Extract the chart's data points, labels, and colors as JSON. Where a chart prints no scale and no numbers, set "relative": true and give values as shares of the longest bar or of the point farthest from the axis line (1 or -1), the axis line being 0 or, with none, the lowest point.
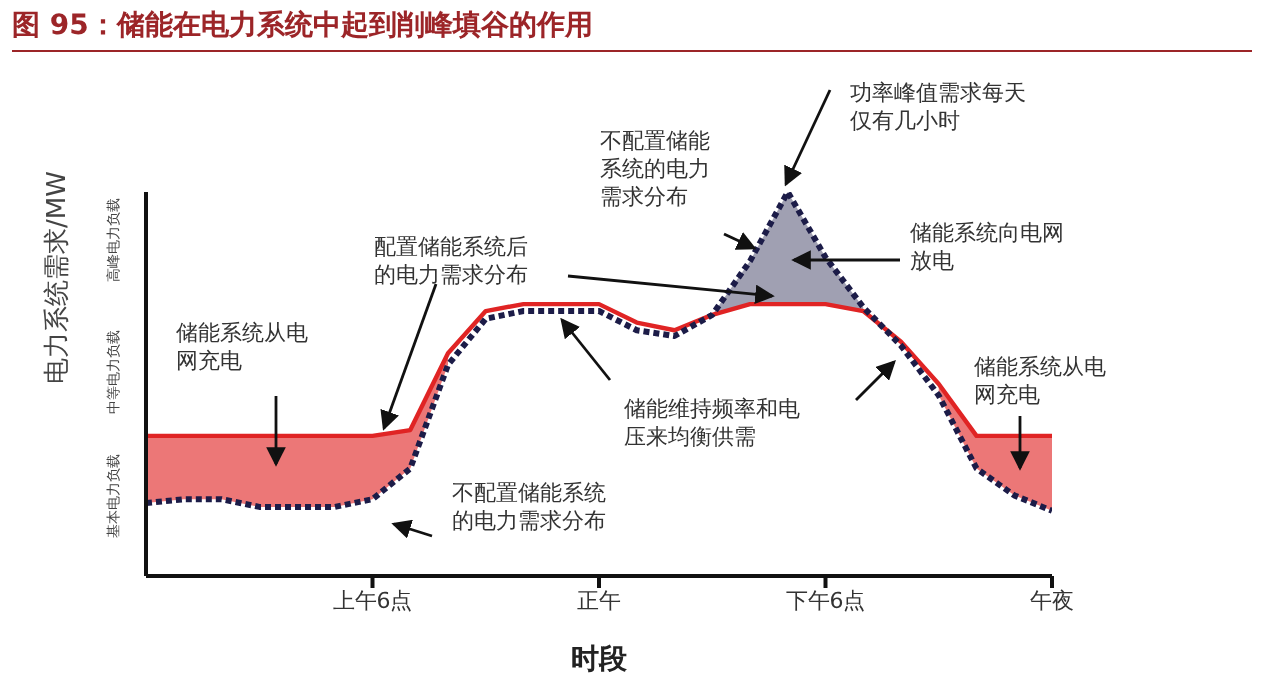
{
  "chart_data": {
    "type": "line",
    "relative": true,
    "title": "图 95：储能在电力系统中起到削峰填谷的作用",
    "xlabel": "时段",
    "ylabel": "电力系统需求/MW",
    "categories": [
      null,
      null,
      null,
      null,
      null,
      null,
      "上午6点",
      null,
      null,
      null,
      null,
      null,
      "正午",
      null,
      null,
      null,
      null,
      null,
      "下午6点",
      null,
      null,
      null,
      null,
      null,
      "午夜"
    ],
    "series": [
      {
        "color": "#e02424",
        "line_style": "solid",
        "values": [
          0.365,
          0.365,
          0.365,
          0.365,
          0.365,
          0.365,
          0.365,
          0.38,
          0.58,
          0.69,
          0.708,
          0.708,
          0.708,
          0.66,
          0.64,
          0.68,
          0.708,
          0.708,
          0.708,
          0.69,
          0.61,
          0.5,
          0.365,
          0.365,
          0.365
        ],
        "lower": [
          0.19,
          0.2,
          0.2,
          0.18,
          0.18,
          0.18,
          0.2,
          0.28,
          0.55,
          null,
          null,
          null,
          null,
          null,
          null,
          null,
          null,
          null,
          null,
          null,
          null,
          0.47,
          0.28,
          0.21,
          0.17
        ],
        "upper": [
          0.365,
          0.365,
          0.365,
          0.365,
          0.365,
          0.365,
          0.365,
          0.38,
          0.58,
          null,
          null,
          null,
          null,
          null,
          null,
          null,
          null,
          null,
          null,
          null,
          null,
          0.5,
          0.365,
          0.365,
          0.365
        ]
      },
      {
        "color": "#1c1c48",
        "line_style": "dotted",
        "values": [
          0.19,
          0.2,
          0.2,
          0.18,
          0.18,
          0.18,
          0.2,
          0.28,
          0.55,
          0.67,
          0.69,
          0.69,
          0.69,
          0.64,
          0.625,
          0.68,
          0.82,
          1.0,
          0.83,
          0.7,
          0.6,
          0.47,
          0.28,
          0.21,
          0.17
        ],
        "lower": [
          null,
          null,
          null,
          null,
          null,
          null,
          null,
          null,
          null,
          null,
          null,
          null,
          null,
          null,
          null,
          0.68,
          0.708,
          0.708,
          0.708,
          0.69,
          null,
          null,
          null,
          null,
          null
        ],
        "upper": [
          null,
          null,
          null,
          null,
          null,
          null,
          null,
          null,
          null,
          null,
          null,
          null,
          null,
          null,
          null,
          0.68,
          0.82,
          1.0,
          0.83,
          0.7,
          null,
          null,
          null,
          null,
          null
        ]
      }
    ],
    "annotations": [
      "储能系统从电网充电",
      "配置储能系统后的电力需求分布",
      "不配置储能系统的电力需求分布",
      "不配置储能系统的电力需求分布",
      "功率峰值需求每天仅有几小时",
      "储能系统向电网放电",
      "储能维持频率和电压来均衡供需",
      "储能系统从电网充电",
      "基本电力负载",
      "中等电力负载",
      "高峰电力负载"
    ]
  }
}
